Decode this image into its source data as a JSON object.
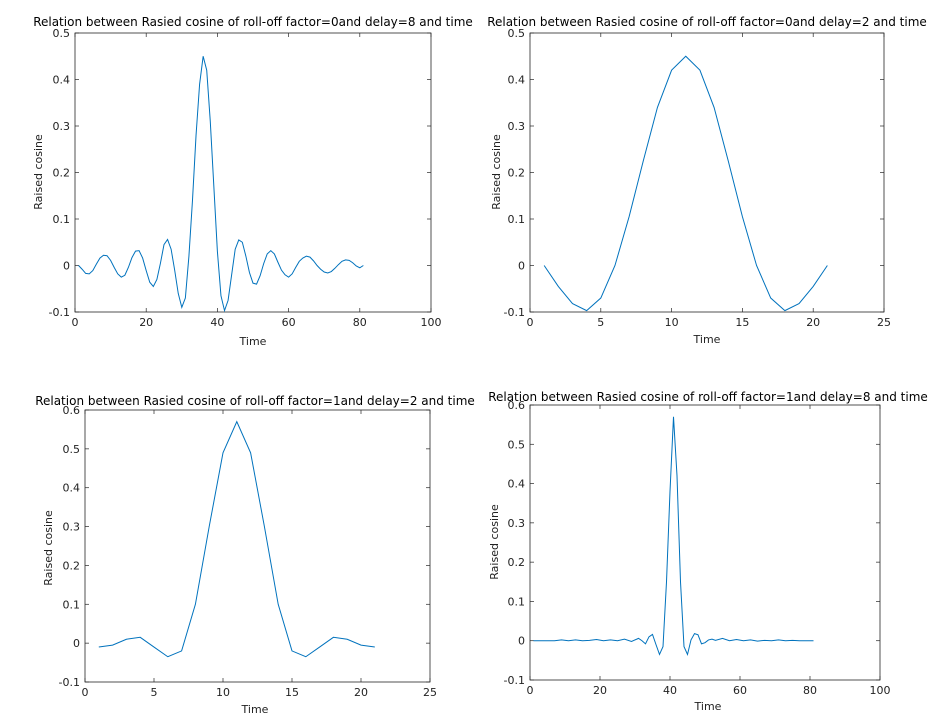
{
  "chart_data": [
    {
      "type": "line",
      "title": "Relation between Rasied cosine of roll-off factor=0and delay=8 and time",
      "xlabel": "Time",
      "ylabel": "Raised cosine",
      "xlim": [
        0,
        100
      ],
      "ylim": [
        -0.1,
        0.5
      ],
      "xticks": [
        0,
        20,
        40,
        60,
        80,
        100
      ],
      "yticks": [
        -0.1,
        0,
        0.1,
        0.2,
        0.3,
        0.4,
        0.5
      ],
      "xticklabels": [
        "0",
        "20",
        "40",
        "60",
        "80",
        "100"
      ],
      "yticklabels": [
        "-0.1",
        "0",
        "0.1",
        "0.2",
        "0.3",
        "0.4",
        "0.5"
      ],
      "grid": false,
      "color": "#0072BD",
      "x": [
        1,
        2,
        3,
        4,
        5,
        6,
        7,
        8,
        9,
        10,
        11,
        12,
        13,
        14,
        15,
        16,
        17,
        18,
        19,
        20,
        21,
        22,
        23,
        24,
        25,
        26,
        27,
        28,
        29,
        30,
        31,
        32,
        33,
        34,
        35,
        36,
        37,
        38,
        39,
        40,
        41,
        42,
        43,
        44,
        45,
        46,
        47,
        48,
        49,
        50,
        51,
        52,
        53,
        54,
        55,
        56,
        57,
        58,
        59,
        60,
        61,
        62,
        63,
        64,
        65,
        66,
        67,
        68,
        69,
        70,
        71,
        72,
        73,
        74,
        75,
        76,
        77,
        78,
        79,
        80,
        81
      ],
      "y": [
        0,
        -0.008,
        -0.017,
        -0.018,
        -0.011,
        0.003,
        0.016,
        0.022,
        0.021,
        0.011,
        -0.004,
        -0.018,
        -0.025,
        -0.021,
        -0.004,
        0.017,
        0.031,
        0.032,
        0.016,
        -0.011,
        -0.036,
        -0.045,
        -0.03,
        0.005,
        0.045,
        0.056,
        0.035,
        -0.01,
        -0.06,
        -0.09,
        -0.07,
        0.02,
        0.14,
        0.28,
        0.39,
        0.45,
        0.42,
        0.31,
        0.17,
        0.03,
        -0.065,
        -0.097,
        -0.075,
        -0.02,
        0.035,
        0.055,
        0.05,
        0.02,
        -0.015,
        -0.038,
        -0.04,
        -0.022,
        0.004,
        0.025,
        0.032,
        0.025,
        0.007,
        -0.01,
        -0.02,
        -0.025,
        -0.018,
        -0.004,
        0.009,
        0.016,
        0.02,
        0.018,
        0.01,
        0.0,
        -0.008,
        -0.014,
        -0.016,
        -0.013,
        -0.006,
        0.002,
        0.009,
        0.012,
        0.011,
        0.006,
        -0.001,
        -0.005,
        0
      ]
    },
    {
      "type": "line",
      "title": "Relation between Rasied cosine of roll-off factor=0and delay=2 and time",
      "xlabel": "Time",
      "ylabel": "Raised cosine",
      "xlim": [
        0,
        25
      ],
      "ylim": [
        -0.1,
        0.5
      ],
      "xticks": [
        0,
        5,
        10,
        15,
        20,
        25
      ],
      "yticks": [
        -0.1,
        0,
        0.1,
        0.2,
        0.3,
        0.4,
        0.5
      ],
      "xticklabels": [
        "0",
        "5",
        "10",
        "15",
        "20",
        "25"
      ],
      "yticklabels": [
        "-0.1",
        "0",
        "0.1",
        "0.2",
        "0.3",
        "0.4",
        "0.5"
      ],
      "grid": false,
      "color": "#0072BD",
      "x": [
        1,
        2,
        3,
        4,
        5,
        6,
        7,
        8,
        9,
        10,
        11,
        12,
        13,
        14,
        15,
        16,
        17,
        18,
        19,
        20,
        21
      ],
      "y": [
        0,
        -0.045,
        -0.082,
        -0.097,
        -0.07,
        0,
        0.105,
        0.225,
        0.34,
        0.42,
        0.45,
        0.42,
        0.34,
        0.225,
        0.105,
        0,
        -0.07,
        -0.097,
        -0.082,
        -0.045,
        0
      ]
    },
    {
      "type": "line",
      "title": "Relation between Rasied cosine of roll-off factor=1and delay=2 and time",
      "xlabel": "Time",
      "ylabel": "Raised cosine",
      "xlim": [
        0,
        25
      ],
      "ylim": [
        -0.1,
        0.6
      ],
      "xticks": [
        0,
        5,
        10,
        15,
        20,
        25
      ],
      "yticks": [
        -0.1,
        0,
        0.1,
        0.2,
        0.3,
        0.4,
        0.5,
        0.6
      ],
      "xticklabels": [
        "0",
        "5",
        "10",
        "15",
        "20",
        "25"
      ],
      "yticklabels": [
        "-0.1",
        "0",
        "0.1",
        "0.2",
        "0.3",
        "0.4",
        "0.5",
        "0.6"
      ],
      "grid": false,
      "color": "#0072BD",
      "x": [
        1,
        2,
        3,
        4,
        5,
        6,
        7,
        8,
        9,
        10,
        11,
        12,
        13,
        14,
        15,
        16,
        17,
        18,
        19,
        20,
        21
      ],
      "y": [
        -0.01,
        -0.005,
        0.01,
        0.015,
        -0.01,
        -0.035,
        -0.02,
        0.1,
        0.3,
        0.49,
        0.57,
        0.49,
        0.3,
        0.1,
        -0.02,
        -0.035,
        -0.01,
        0.015,
        0.01,
        -0.005,
        -0.01
      ]
    },
    {
      "type": "line",
      "title": "Relation between Rasied cosine of roll-off factor=1and delay=8 and time",
      "xlabel": "Time",
      "ylabel": "Raised cosine",
      "xlim": [
        0,
        100
      ],
      "ylim": [
        -0.1,
        0.6
      ],
      "xticks": [
        0,
        20,
        40,
        60,
        80,
        100
      ],
      "yticks": [
        -0.1,
        0,
        0.1,
        0.2,
        0.3,
        0.4,
        0.5,
        0.6
      ],
      "xticklabels": [
        "0",
        "20",
        "40",
        "60",
        "80",
        "100"
      ],
      "yticklabels": [
        "-0.1",
        "0",
        "0.1",
        "0.2",
        "0.3",
        "0.4",
        "0.5",
        "0.6"
      ],
      "grid": false,
      "color": "#0072BD",
      "x": [
        1,
        3,
        5,
        7,
        9,
        11,
        13,
        15,
        17,
        19,
        21,
        23,
        25,
        27,
        29,
        31,
        32,
        33,
        34,
        35,
        36,
        37,
        38,
        39,
        40,
        41,
        42,
        43,
        44,
        45,
        46,
        47,
        48,
        49,
        50,
        51,
        52,
        53,
        55,
        57,
        59,
        61,
        63,
        65,
        67,
        69,
        71,
        73,
        75,
        77,
        79,
        81
      ],
      "y": [
        0,
        0,
        0,
        0,
        0.002,
        0,
        0.002,
        0,
        0.001,
        0.003,
        0,
        0.002,
        0,
        0.004,
        -0.002,
        0.006,
        0,
        -0.008,
        0.01,
        0.016,
        -0.01,
        -0.035,
        -0.015,
        0.15,
        0.38,
        0.57,
        0.42,
        0.15,
        -0.015,
        -0.035,
        0.002,
        0.018,
        0.015,
        -0.008,
        -0.005,
        0.002,
        0.004,
        0.001,
        0.006,
        0,
        0.003,
        0,
        0.002,
        -0.001,
        0.001,
        0,
        0.002,
        0,
        0.001,
        0,
        0,
        0
      ]
    }
  ]
}
